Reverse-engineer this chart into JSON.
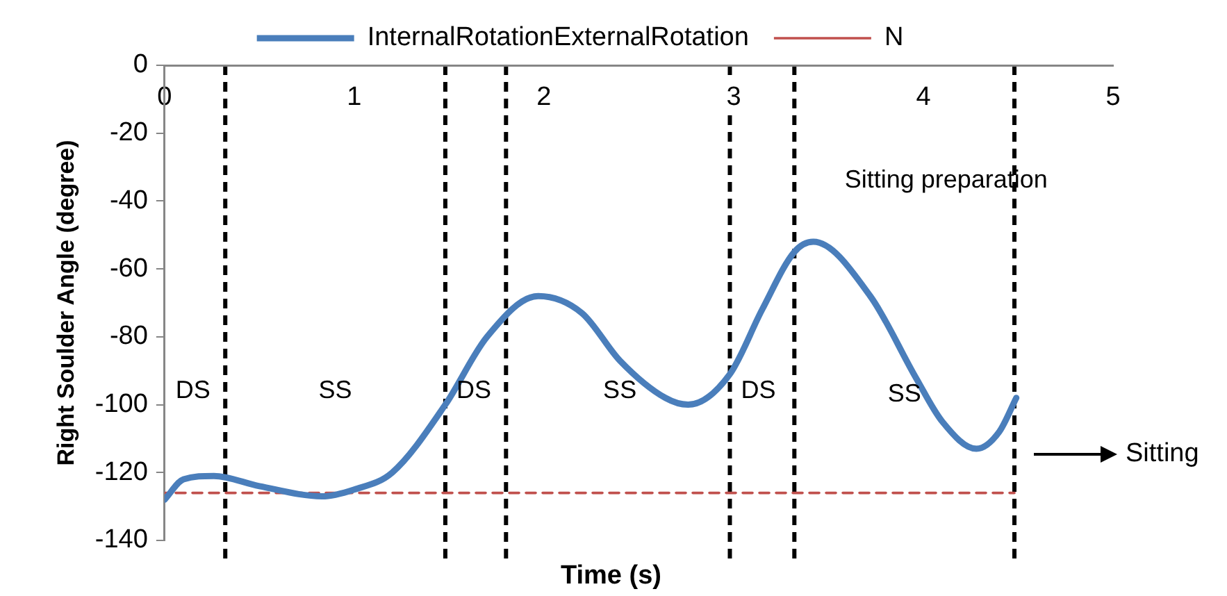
{
  "chart_data": {
    "type": "line",
    "xlabel": "Time (s)",
    "ylabel": "Right Soulder Angle (degree)",
    "xlim": [
      0,
      5
    ],
    "xticks": [
      0,
      1,
      2,
      3,
      4,
      5
    ],
    "ylim": [
      -140,
      0
    ],
    "yticks": [
      -140,
      -120,
      -100,
      -80,
      -60,
      -40,
      -20,
      0
    ],
    "grid": false,
    "legend": "top",
    "marker": "none",
    "series": [
      {
        "name": "InternalRotationExternalRotation",
        "color": "#4a7ebb",
        "line_style": "solid",
        "x": [
          0,
          0.1,
          0.26,
          0.5,
          0.83,
          1.0,
          1.2,
          1.48,
          1.7,
          1.97,
          2.2,
          2.4,
          2.64,
          2.76,
          2.98,
          3.15,
          3.32,
          3.42,
          3.72,
          3.96,
          4.1,
          4.28,
          4.4,
          4.49
        ],
        "values": [
          -128,
          -122,
          -121,
          -124,
          -127,
          -125,
          -120,
          -100,
          -80,
          -68,
          -73,
          -87,
          -98,
          -100,
          -91,
          -72,
          -55,
          -52,
          -68,
          -92,
          -105,
          -113,
          -108,
          -98
        ]
      },
      {
        "name": "N",
        "color": "#c0504d",
        "line_style": "dashed",
        "x": [
          0,
          4.48
        ],
        "values": [
          -126,
          -126
        ]
      }
    ],
    "ref_lines": [
      {
        "axis": "x",
        "value": 0.32,
        "color": "#000000",
        "line_style": "dashed"
      },
      {
        "axis": "x",
        "value": 1.48,
        "color": "#000000",
        "line_style": "dashed"
      },
      {
        "axis": "x",
        "value": 1.8,
        "color": "#000000",
        "line_style": "dashed"
      },
      {
        "axis": "x",
        "value": 2.98,
        "color": "#000000",
        "line_style": "dashed"
      },
      {
        "axis": "x",
        "value": 3.32,
        "color": "#000000",
        "line_style": "dashed"
      },
      {
        "axis": "x",
        "value": 4.48,
        "color": "#000000",
        "line_style": "dashed"
      }
    ],
    "annotations": [
      "DS",
      "SS",
      "DS",
      "SS",
      "DS",
      "SS",
      "Sitting preparation",
      "Sitting"
    ]
  }
}
